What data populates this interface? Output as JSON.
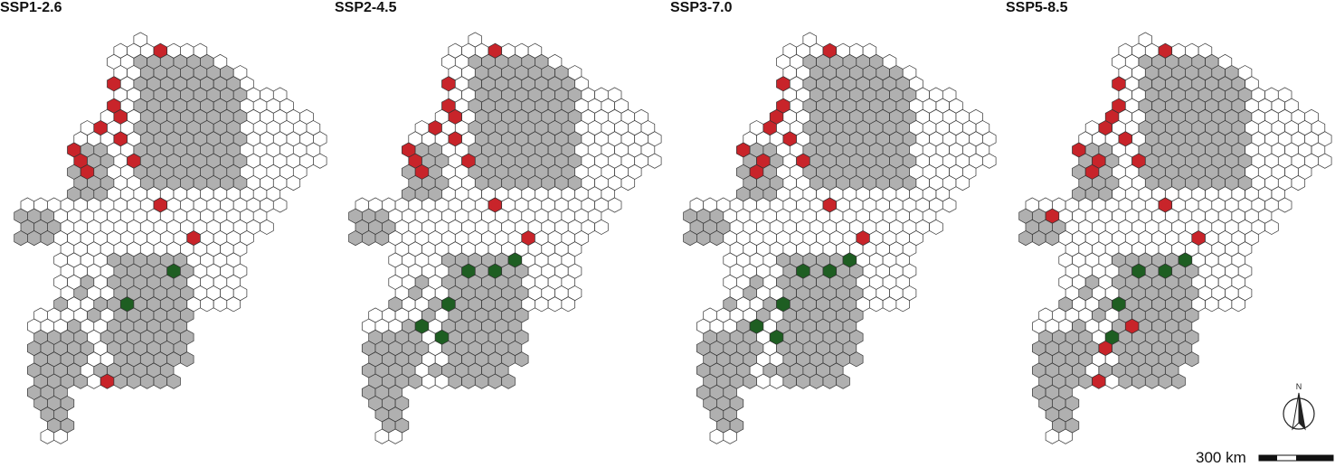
{
  "panels": [
    {
      "title": "SSP1-2.6"
    },
    {
      "title": "SSP2-4.5"
    },
    {
      "title": "SSP3-7.0"
    },
    {
      "title": "SSP5-8.5"
    }
  ],
  "colors": {
    "unchanged": "#ffffff",
    "gray": "#b0b0b0",
    "loss": "#c8242a",
    "gain": "#1e5e22",
    "stroke": "#333333"
  },
  "north_arrow": {
    "label": "N"
  },
  "scale_bar": {
    "label": "300 km"
  }
}
